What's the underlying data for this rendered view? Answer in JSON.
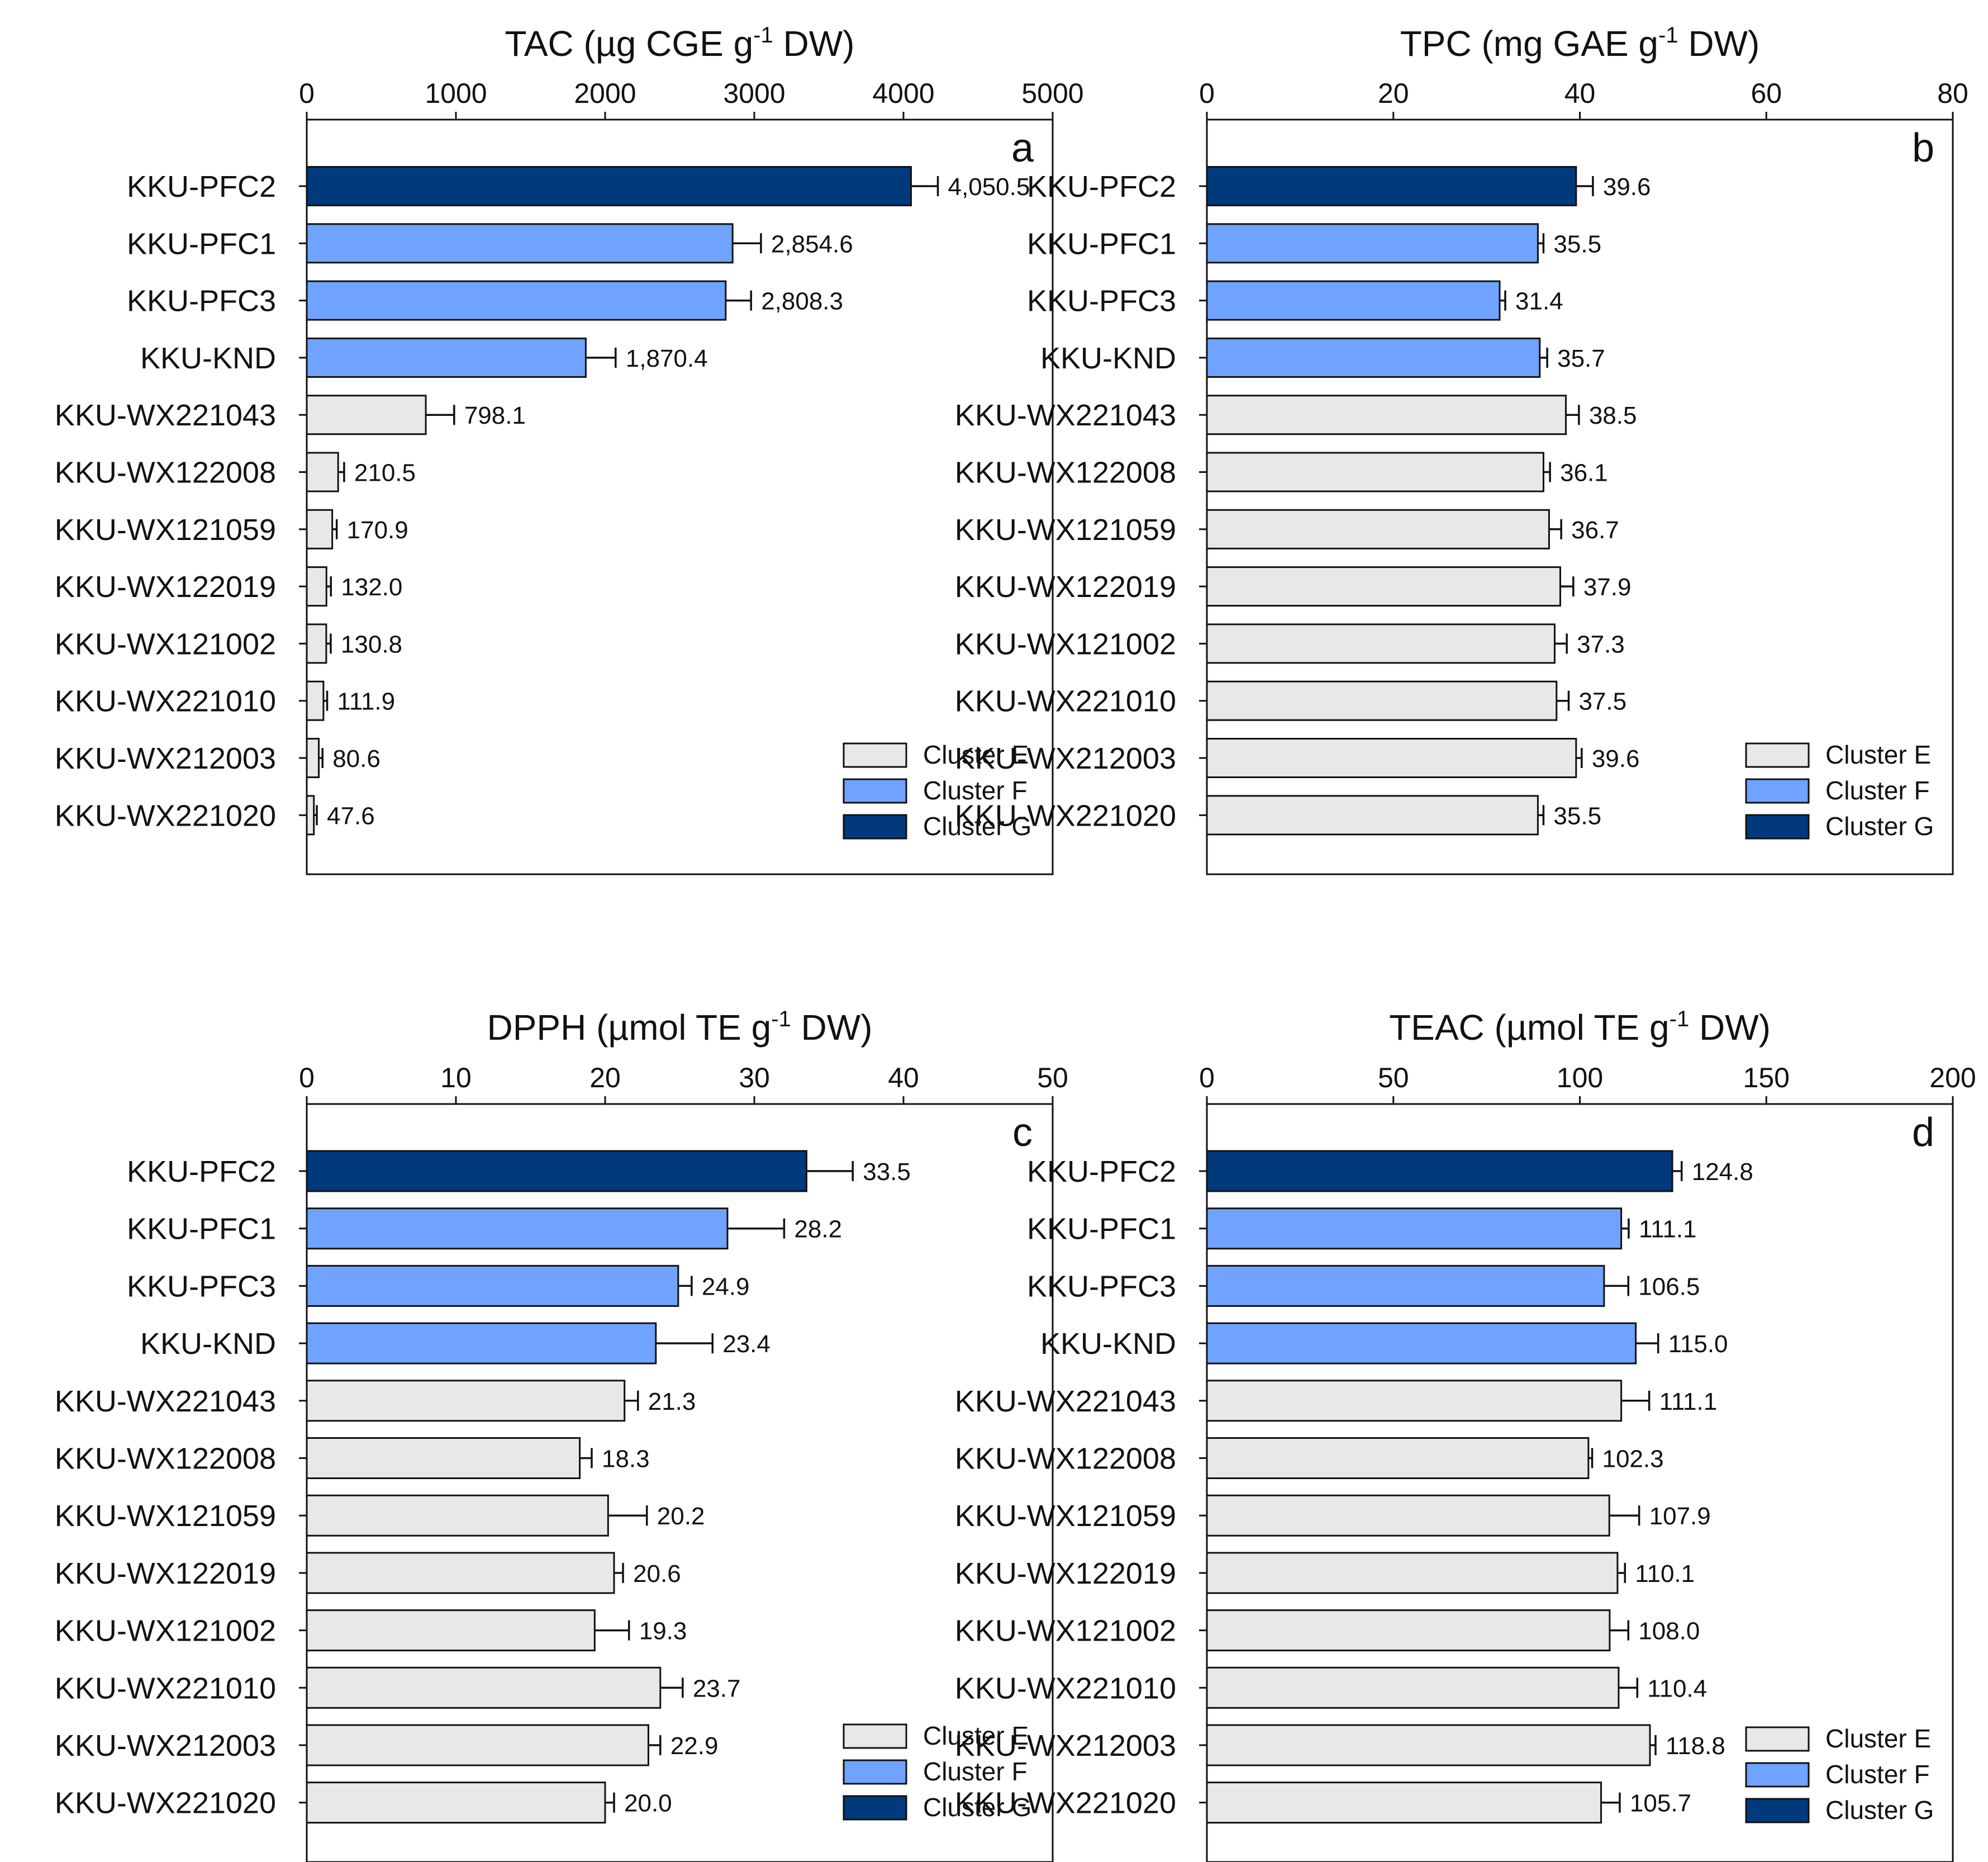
{
  "colors": {
    "cluster_e": "#e8e8e8",
    "cluster_f": "#6fa3ff",
    "cluster_g": "#003a7d",
    "ink": "#111111"
  },
  "legend": {
    "entries": [
      {
        "key": "E",
        "label": "Cluster E"
      },
      {
        "key": "F",
        "label": "Cluster F"
      },
      {
        "key": "G",
        "label": "Cluster G"
      }
    ]
  },
  "categories": [
    "KKU-PFC2",
    "KKU-PFC1",
    "KKU-PFC3",
    "KKU-KND",
    "KKU-WX221043",
    "KKU-WX122008",
    "KKU-WX121059",
    "KKU-WX122019",
    "KKU-WX121002",
    "KKU-WX221010",
    "KKU-WX212003",
    "KKU-WX221020"
  ],
  "clusters": [
    "G",
    "F",
    "F",
    "F",
    "E",
    "E",
    "E",
    "E",
    "E",
    "E",
    "E",
    "E"
  ],
  "chart_data": [
    {
      "type": "bar",
      "panel": "a",
      "orientation": "horizontal",
      "title_main": "TAC (µg CGE g",
      "title_sup": "-1",
      "title_end": " DW)",
      "xlim": [
        0,
        5000
      ],
      "ticks": [
        0,
        1000,
        2000,
        3000,
        4000,
        5000
      ],
      "values": [
        4050.5,
        2854.6,
        2808.3,
        1870.4,
        798.1,
        210.5,
        170.9,
        132.0,
        130.8,
        111.9,
        80.6,
        47.6
      ],
      "errors": [
        180,
        190,
        170,
        200,
        190,
        40,
        30,
        30,
        30,
        25,
        25,
        20
      ],
      "value_labels": [
        "4,050.5",
        "2,854.6",
        "2,808.3",
        "1,870.4",
        "798.1",
        "210.5",
        "170.9",
        "132.0",
        "130.8",
        "111.9",
        "80.6",
        "47.6"
      ]
    },
    {
      "type": "bar",
      "panel": "b",
      "orientation": "horizontal",
      "title_main": "TPC (mg GAE g",
      "title_sup": "-1",
      "title_end": " DW)",
      "xlim": [
        0,
        80
      ],
      "ticks": [
        0,
        20,
        40,
        60,
        80
      ],
      "values": [
        39.6,
        35.5,
        31.4,
        35.7,
        38.5,
        36.1,
        36.7,
        37.9,
        37.3,
        37.5,
        39.6,
        35.5
      ],
      "errors": [
        1.8,
        0.6,
        0.6,
        0.8,
        1.4,
        0.7,
        1.3,
        1.4,
        1.3,
        1.3,
        0.6,
        0.6
      ],
      "value_labels": [
        "39.6",
        "35.5",
        "31.4",
        "35.7",
        "38.5",
        "36.1",
        "36.7",
        "37.9",
        "37.3",
        "37.5",
        "39.6",
        "35.5"
      ]
    },
    {
      "type": "bar",
      "panel": "c",
      "orientation": "horizontal",
      "title_main": "DPPH (µmol TE g",
      "title_sup": "-1",
      "title_end": " DW)",
      "xlim": [
        0,
        50
      ],
      "ticks": [
        0,
        10,
        20,
        30,
        40,
        50
      ],
      "values": [
        33.5,
        28.2,
        24.9,
        23.4,
        21.3,
        18.3,
        20.2,
        20.6,
        19.3,
        23.7,
        22.9,
        20.0
      ],
      "errors": [
        3.1,
        3.8,
        0.9,
        3.8,
        0.9,
        0.8,
        2.6,
        0.6,
        2.3,
        1.5,
        0.8,
        0.6
      ],
      "value_labels": [
        "33.5",
        "28.2",
        "24.9",
        "23.4",
        "21.3",
        "18.3",
        "20.2",
        "20.6",
        "19.3",
        "23.7",
        "22.9",
        "20.0"
      ]
    },
    {
      "type": "bar",
      "panel": "d",
      "orientation": "horizontal",
      "title_main": "TEAC (µmol TE g",
      "title_sup": "-1",
      "title_end": " DW)",
      "xlim": [
        0,
        200
      ],
      "ticks": [
        0,
        50,
        100,
        150,
        200
      ],
      "values": [
        124.8,
        111.1,
        106.5,
        115.0,
        111.1,
        102.3,
        107.9,
        110.1,
        108.0,
        110.4,
        118.8,
        105.7
      ],
      "errors": [
        2.5,
        2.0,
        6.5,
        6.0,
        7.5,
        1.0,
        8.0,
        2.0,
        5.0,
        5.0,
        1.5,
        5.0
      ],
      "value_labels": [
        "124.8",
        "111.1",
        "106.5",
        "115.0",
        "111.1",
        "102.3",
        "107.9",
        "110.1",
        "108.0",
        "110.4",
        "118.8",
        "105.7"
      ]
    }
  ]
}
